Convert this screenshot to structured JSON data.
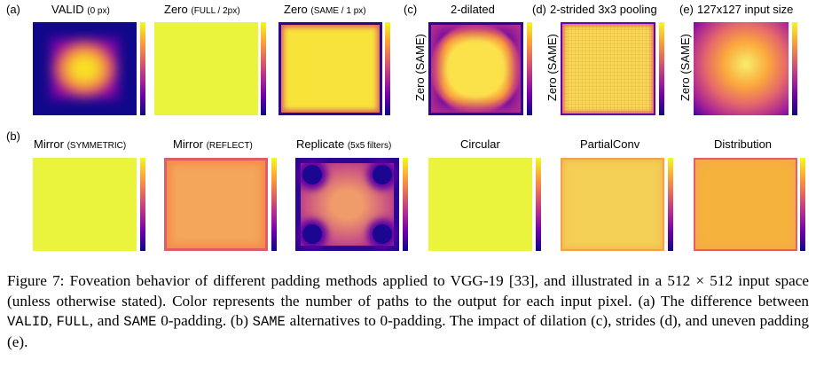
{
  "row_labels": {
    "a": "(a)",
    "b": "(b)",
    "c": "(c)",
    "d": "(d)",
    "e": "(e)"
  },
  "panels_top": [
    {
      "title": "VALID",
      "sub": "(0 px)"
    },
    {
      "title": "Zero",
      "sub": "(FULL / 2px)"
    },
    {
      "title": "Zero",
      "sub": "(SAME / 1 px)"
    },
    {
      "title": "2-dilated",
      "sub": ""
    },
    {
      "title": "2-strided 3x3 pooling",
      "sub": ""
    },
    {
      "title": "127x127 input size",
      "sub": ""
    }
  ],
  "ylabels": [
    "Zero (SAME)",
    "Zero (SAME)",
    "Zero (SAME)"
  ],
  "panels_bottom": [
    {
      "title": "Mirror",
      "sub": "(SYMMETRIC)"
    },
    {
      "title": "Mirror",
      "sub": "(REFLECT)"
    },
    {
      "title": "Replicate",
      "sub": "(5x5 filters)"
    },
    {
      "title": "Circular",
      "sub": ""
    },
    {
      "title": "PartialConv",
      "sub": ""
    },
    {
      "title": "Distribution",
      "sub": ""
    }
  ],
  "caption": {
    "p1": "Figure 7: Foveation behavior of different padding methods applied to VGG-19 [33], and illustrated in a 512 × 512 input space (unless otherwise stated). Color represents the number of paths to the output for each input pixel. (a) The difference between ",
    "valid": "VALID",
    "p2": ", ",
    "full": "FULL",
    "p3": ", and ",
    "same": "SAME",
    "p4": " 0-padding. (b) ",
    "same2": "SAME",
    "p5": " alternatives to 0-padding. The impact of dilation (c), strides (d), and uneven padding (e)."
  },
  "colors": {
    "cmap_low": "#0d0887",
    "cmap_high": "#f0f921"
  }
}
